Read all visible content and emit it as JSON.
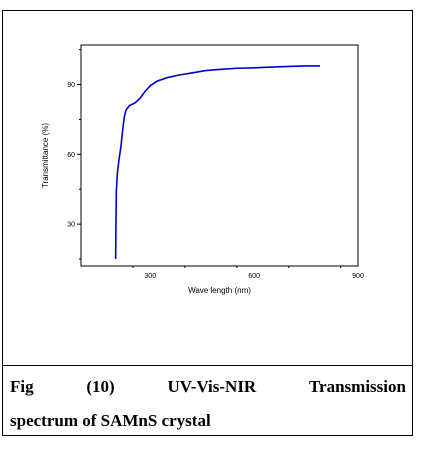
{
  "chart_data": {
    "type": "line",
    "xlabel": "Wave length (nm)",
    "ylabel": "Transmittance (%)",
    "xlim": [
      100,
      900
    ],
    "ylim": [
      12,
      107
    ],
    "x_ticks": [
      300,
      600,
      900
    ],
    "y_ticks": [
      30,
      60,
      90
    ],
    "grid": false,
    "series_color": "#0000cc",
    "series": [
      {
        "values": [
          [
            200,
            15
          ],
          [
            201,
            30
          ],
          [
            202,
            44
          ],
          [
            205,
            52
          ],
          [
            210,
            58
          ],
          [
            215,
            63
          ],
          [
            220,
            70
          ],
          [
            225,
            76
          ],
          [
            230,
            79
          ],
          [
            240,
            81
          ],
          [
            255,
            82
          ],
          [
            270,
            84
          ],
          [
            285,
            87
          ],
          [
            300,
            89.5
          ],
          [
            320,
            91.5
          ],
          [
            350,
            93
          ],
          [
            380,
            94
          ],
          [
            420,
            95
          ],
          [
            460,
            96
          ],
          [
            500,
            96.5
          ],
          [
            550,
            97
          ],
          [
            600,
            97.2
          ],
          [
            650,
            97.5
          ],
          [
            700,
            97.8
          ],
          [
            750,
            98
          ],
          [
            790,
            98
          ]
        ]
      }
    ]
  },
  "caption": {
    "line1_words": [
      "Fig",
      "(10)",
      "UV-Vis-NIR",
      "Transmission"
    ],
    "line2": "spectrum of SAMnS crystal"
  }
}
